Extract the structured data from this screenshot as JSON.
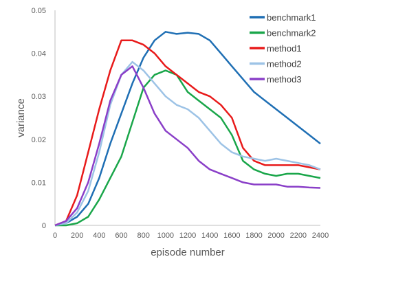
{
  "chart_data": {
    "type": "line",
    "title": "",
    "xlabel": "episode number",
    "ylabel": "variance",
    "xlim": [
      0,
      2400
    ],
    "ylim": [
      0,
      0.05
    ],
    "x_ticks": [
      0,
      200,
      400,
      600,
      800,
      1000,
      1200,
      1400,
      1600,
      1800,
      2000,
      2200,
      2400
    ],
    "y_ticks": [
      0,
      0.01,
      0.02,
      0.03,
      0.04,
      0.05
    ],
    "y_tick_labels": [
      "0",
      "0.01",
      "0.02",
      "0.03",
      "0.04",
      "0.05"
    ],
    "grid": false,
    "legend_position": "top-right",
    "series": [
      {
        "name": "benchmark1",
        "color": "#1f6fb4",
        "points": [
          [
            0,
            0
          ],
          [
            100,
            0.0005
          ],
          [
            200,
            0.002
          ],
          [
            300,
            0.005
          ],
          [
            400,
            0.011
          ],
          [
            500,
            0.019
          ],
          [
            600,
            0.026
          ],
          [
            700,
            0.033
          ],
          [
            800,
            0.039
          ],
          [
            900,
            0.043
          ],
          [
            1000,
            0.045
          ],
          [
            1100,
            0.0445
          ],
          [
            1200,
            0.0448
          ],
          [
            1300,
            0.0445
          ],
          [
            1400,
            0.043
          ],
          [
            1500,
            0.04
          ],
          [
            1600,
            0.037
          ],
          [
            1700,
            0.034
          ],
          [
            1800,
            0.031
          ],
          [
            1900,
            0.029
          ],
          [
            2000,
            0.027
          ],
          [
            2100,
            0.025
          ],
          [
            2200,
            0.023
          ],
          [
            2300,
            0.021
          ],
          [
            2400,
            0.019
          ]
        ]
      },
      {
        "name": "benchmark2",
        "color": "#1aa64a",
        "points": [
          [
            0,
            0
          ],
          [
            100,
            0
          ],
          [
            200,
            0.0005
          ],
          [
            300,
            0.002
          ],
          [
            400,
            0.006
          ],
          [
            500,
            0.011
          ],
          [
            600,
            0.016
          ],
          [
            700,
            0.024
          ],
          [
            800,
            0.032
          ],
          [
            900,
            0.035
          ],
          [
            1000,
            0.036
          ],
          [
            1100,
            0.035
          ],
          [
            1200,
            0.031
          ],
          [
            1300,
            0.029
          ],
          [
            1400,
            0.027
          ],
          [
            1500,
            0.025
          ],
          [
            1600,
            0.021
          ],
          [
            1700,
            0.015
          ],
          [
            1800,
            0.013
          ],
          [
            1900,
            0.012
          ],
          [
            2000,
            0.0115
          ],
          [
            2100,
            0.012
          ],
          [
            2200,
            0.012
          ],
          [
            2300,
            0.0115
          ],
          [
            2400,
            0.011
          ]
        ]
      },
      {
        "name": "method1",
        "color": "#e81a1a",
        "points": [
          [
            0,
            0
          ],
          [
            100,
            0.001
          ],
          [
            200,
            0.007
          ],
          [
            300,
            0.017
          ],
          [
            400,
            0.027
          ],
          [
            500,
            0.036
          ],
          [
            600,
            0.043
          ],
          [
            700,
            0.043
          ],
          [
            800,
            0.042
          ],
          [
            900,
            0.04
          ],
          [
            1000,
            0.037
          ],
          [
            1100,
            0.035
          ],
          [
            1200,
            0.033
          ],
          [
            1300,
            0.031
          ],
          [
            1400,
            0.03
          ],
          [
            1500,
            0.028
          ],
          [
            1600,
            0.025
          ],
          [
            1700,
            0.018
          ],
          [
            1800,
            0.015
          ],
          [
            1900,
            0.014
          ],
          [
            2000,
            0.014
          ],
          [
            2100,
            0.014
          ],
          [
            2200,
            0.014
          ],
          [
            2300,
            0.0135
          ],
          [
            2400,
            0.013
          ]
        ]
      },
      {
        "name": "method2",
        "color": "#9dc3e6",
        "points": [
          [
            0,
            0
          ],
          [
            100,
            0.0005
          ],
          [
            200,
            0.003
          ],
          [
            300,
            0.008
          ],
          [
            400,
            0.017
          ],
          [
            500,
            0.028
          ],
          [
            600,
            0.035
          ],
          [
            700,
            0.038
          ],
          [
            800,
            0.036
          ],
          [
            900,
            0.033
          ],
          [
            1000,
            0.03
          ],
          [
            1100,
            0.028
          ],
          [
            1200,
            0.027
          ],
          [
            1300,
            0.025
          ],
          [
            1400,
            0.022
          ],
          [
            1500,
            0.019
          ],
          [
            1600,
            0.017
          ],
          [
            1700,
            0.016
          ],
          [
            1800,
            0.0155
          ],
          [
            1900,
            0.015
          ],
          [
            2000,
            0.0155
          ],
          [
            2100,
            0.015
          ],
          [
            2200,
            0.0145
          ],
          [
            2300,
            0.014
          ],
          [
            2400,
            0.013
          ]
        ]
      },
      {
        "name": "method3",
        "color": "#8a3fc8",
        "points": [
          [
            0,
            0
          ],
          [
            100,
            0.001
          ],
          [
            200,
            0.004
          ],
          [
            300,
            0.01
          ],
          [
            400,
            0.019
          ],
          [
            500,
            0.029
          ],
          [
            600,
            0.035
          ],
          [
            700,
            0.037
          ],
          [
            800,
            0.032
          ],
          [
            900,
            0.026
          ],
          [
            1000,
            0.022
          ],
          [
            1100,
            0.02
          ],
          [
            1200,
            0.018
          ],
          [
            1300,
            0.015
          ],
          [
            1400,
            0.013
          ],
          [
            1500,
            0.012
          ],
          [
            1600,
            0.011
          ],
          [
            1700,
            0.01
          ],
          [
            1800,
            0.0095
          ],
          [
            1900,
            0.0095
          ],
          [
            2000,
            0.0095
          ],
          [
            2100,
            0.009
          ],
          [
            2200,
            0.009
          ],
          [
            2300,
            0.0088
          ],
          [
            2400,
            0.0087
          ]
        ]
      }
    ]
  }
}
